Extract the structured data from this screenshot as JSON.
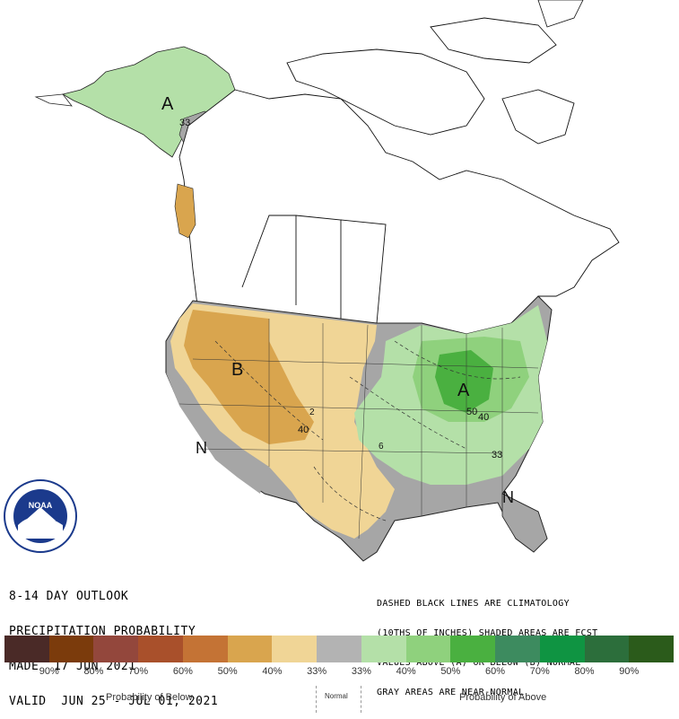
{
  "outlook": {
    "line1": "8-14 DAY OUTLOOK",
    "line2": "PRECIPITATION PROBABILITY",
    "line3": "MADE  17 JUN 2021",
    "line4": "VALID  JUN 25 - JUL 01, 2021"
  },
  "note": {
    "line1": "DASHED BLACK LINES ARE CLIMATOLOGY",
    "line2": "(10THS OF INCHES) SHADED AREAS ARE FCST",
    "line3": "VALUES ABOVE (A) OR BELOW (B) NORMAL",
    "line4": "GRAY AREAS ARE NEAR-NORMAL"
  },
  "logo": {
    "text": "NOAA"
  },
  "map_labels": {
    "alaska_a": "A",
    "alaska_33": "33",
    "west_b": "B",
    "southwest_n": "N",
    "midwest_a": "A",
    "southeast_n": "N",
    "plains_40": "40",
    "plains_2": "2",
    "ohio_50": "50",
    "ohio_40": "40",
    "east_33": "33",
    "south_6": "6"
  },
  "legend": {
    "colors": [
      "#4a2a27",
      "#7b3b0c",
      "#93473c",
      "#a9502b",
      "#c47335",
      "#d9a54e",
      "#f0d596",
      "#b3b3b3",
      "#b4e0a8",
      "#8fd17d",
      "#4ab040",
      "#3d8b5f",
      "#0f9442",
      "#2c6e3b",
      "#2b5b1b"
    ],
    "labels": [
      "90%",
      "80%",
      "70%",
      "60%",
      "50%",
      "40%",
      "33%",
      "33%",
      "40%",
      "50%",
      "60%",
      "70%",
      "80%",
      "90%"
    ],
    "below": "Probability of Below",
    "normal": "Normal",
    "above": "Probability of Above"
  },
  "colors": {
    "below_33": "#f0d596",
    "below_40": "#d9a54e",
    "near_normal": "#a6a6a6",
    "above_33": "#b4e0a8",
    "above_40": "#8fd17d",
    "above_50": "#4ab040"
  }
}
